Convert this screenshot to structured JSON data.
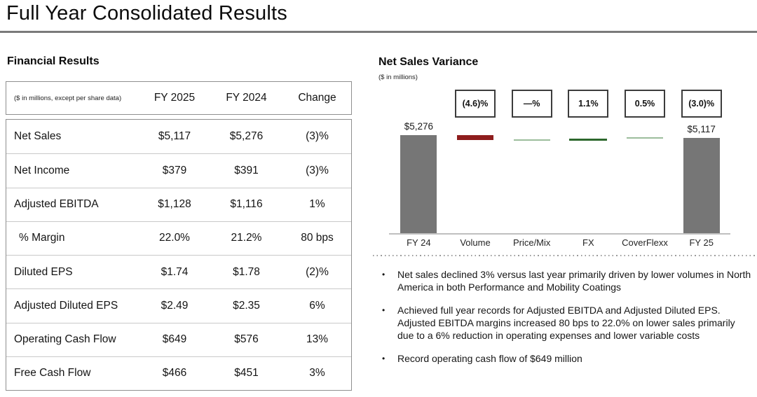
{
  "slide": {
    "title": "Full Year Consolidated Results"
  },
  "financial_results": {
    "heading": "Financial Results",
    "note": "($ in millions, except per share data)",
    "columns": [
      "FY 2025",
      "FY 2024",
      "Change"
    ],
    "rows": [
      {
        "label": "Net Sales",
        "fy2025": "$5,117",
        "fy2024": "$5,276",
        "change": "(3)%"
      },
      {
        "label": "Net Income",
        "fy2025": "$379",
        "fy2024": "$391",
        "change": "(3)%"
      },
      {
        "label": "Adjusted EBITDA",
        "fy2025": "$1,128",
        "fy2024": "$1,116",
        "change": "1%"
      },
      {
        "label": "% Margin",
        "fy2025": "22.0%",
        "fy2024": "21.2%",
        "change": "80 bps"
      },
      {
        "label": "Diluted EPS",
        "fy2025": "$1.74",
        "fy2024": "$1.78",
        "change": "(2)%"
      },
      {
        "label": "Adjusted Diluted EPS",
        "fy2025": "$2.49",
        "fy2024": "$2.35",
        "change": "6%"
      },
      {
        "label": "Operating Cash Flow",
        "fy2025": "$649",
        "fy2024": "$576",
        "change": "13%"
      },
      {
        "label": "Free Cash Flow",
        "fy2025": "$466",
        "fy2024": "$451",
        "change": "3%"
      }
    ]
  },
  "variance_chart": {
    "heading": "Net Sales Variance",
    "subtitle": "($ in millions)",
    "start_value_label": "$5,276",
    "end_value_label": "$5,117",
    "badges": [
      "(4.6)%",
      "—%",
      "1.1%",
      "0.5%",
      "(3.0)%"
    ],
    "x_labels": [
      "FY 24",
      "Volume",
      "Price/Mix",
      "FX",
      "CoverFlexx",
      "FY 25"
    ],
    "colors": {
      "total_bar": "#767676",
      "negative_bar": "#8e1d1d",
      "positive_bar": "#2d682d",
      "small_positive_bar": "#9cbd9c",
      "axis_line": "#bfbfbf"
    }
  },
  "chart_data": {
    "type": "bar",
    "subtype": "waterfall",
    "title": "Net Sales Variance",
    "unit_label": "($ in millions)",
    "categories": [
      "FY 24",
      "Volume",
      "Price/Mix",
      "FX",
      "CoverFlexx",
      "FY 25"
    ],
    "bar_roles": [
      "total",
      "decrease",
      "neutral",
      "increase",
      "increase",
      "total"
    ],
    "bar_values_millions": [
      5276,
      -243,
      0,
      58,
      26,
      5117
    ],
    "bar_value_labels": [
      "$5,276",
      "",
      "",
      "",
      "",
      "$5,117"
    ],
    "pct_change_labels": [
      "",
      "(4.6)%",
      "—%",
      "1.1%",
      "0.5%",
      "(3.0)%"
    ],
    "pct_changes": [
      null,
      -4.6,
      0.0,
      1.1,
      0.5,
      -3.0
    ],
    "legend": "none",
    "grid": false
  },
  "bullets": {
    "marker": "•",
    "items": [
      "Net sales declined 3% versus last year primarily driven by lower volumes in North America in both Performance and Mobility Coatings",
      "Achieved full year records for Adjusted EBITDA and Adjusted Diluted EPS. Adjusted EBITDA margins increased 80 bps to 22.0% on lower sales primarily due to a 6% reduction in operating expenses and lower variable costs",
      "Record operating cash flow of $649 million"
    ]
  }
}
